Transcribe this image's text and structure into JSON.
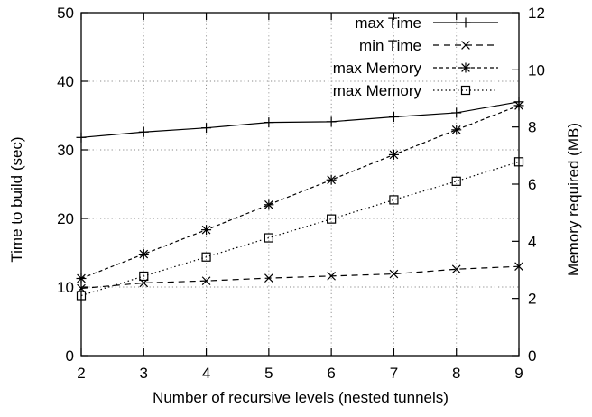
{
  "chart_data": {
    "type": "line",
    "title": "",
    "xlabel": "Number of recursive levels (nested tunnels)",
    "ylabel_left": "Time to build (sec)",
    "ylabel_right": "Memory required (MB)",
    "x": [
      2,
      3,
      4,
      5,
      6,
      7,
      8,
      9
    ],
    "xlim": [
      2,
      9
    ],
    "ylim_left": [
      0,
      50
    ],
    "ylim_right": [
      0,
      12
    ],
    "x_ticks": [
      "2",
      "3",
      "4",
      "5",
      "6",
      "7",
      "8",
      "9"
    ],
    "y_ticks_left": [
      "0",
      "10",
      "20",
      "30",
      "40",
      "50"
    ],
    "y_ticks_right": [
      "0",
      "2",
      "4",
      "6",
      "8",
      "10",
      "12"
    ],
    "grid": true,
    "legend_position": "top-left",
    "series": [
      {
        "name": "max Time",
        "axis": "left",
        "marker": "plus",
        "dash": "solid",
        "values": [
          31.8,
          32.6,
          33.2,
          34.0,
          34.1,
          34.8,
          35.4,
          37.0
        ]
      },
      {
        "name": "min Time",
        "axis": "left",
        "marker": "x",
        "dash": "dashed",
        "values": [
          9.8,
          10.6,
          10.9,
          11.3,
          11.6,
          11.9,
          12.6,
          13.0
        ]
      },
      {
        "name": "max Memory",
        "axis": "right",
        "marker": "star",
        "dash": "short-dashed",
        "values": [
          2.7,
          3.55,
          4.4,
          5.28,
          6.15,
          7.03,
          7.9,
          8.75
        ]
      },
      {
        "name": "max Memory",
        "axis": "right",
        "marker": "square",
        "dash": "dotted",
        "values": [
          2.1,
          2.78,
          3.45,
          4.12,
          4.78,
          5.45,
          6.1,
          6.78
        ]
      }
    ]
  }
}
